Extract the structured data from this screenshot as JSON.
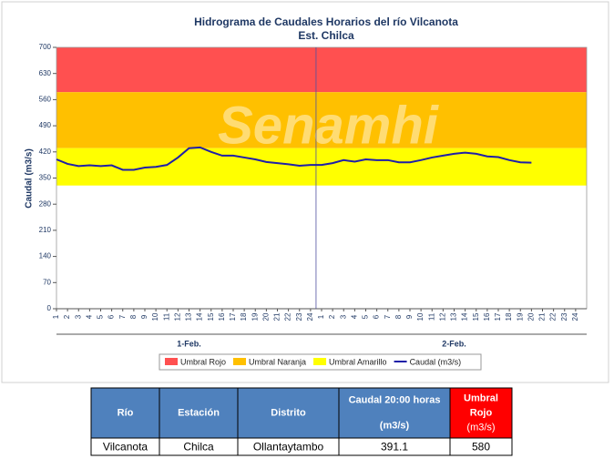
{
  "chart_data": {
    "type": "line",
    "title": "Hidrograma de Caudales Horarios del río Vilcanota",
    "subtitle": "Est. Chilca",
    "y_label": "Caudal  (m3/s)",
    "watermark": "Senamhi",
    "groups": [
      "1-Feb.",
      "2-Feb."
    ],
    "categories": [
      "1",
      "2",
      "3",
      "4",
      "5",
      "6",
      "7",
      "8",
      "9",
      "10",
      "11",
      "12",
      "13",
      "14",
      "15",
      "16",
      "17",
      "18",
      "19",
      "20",
      "21",
      "22",
      "23",
      "24",
      "1",
      "2",
      "3",
      "4",
      "5",
      "6",
      "7",
      "8",
      "9",
      "10",
      "11",
      "12",
      "13",
      "14",
      "15",
      "16",
      "17",
      "18",
      "19",
      "20",
      "21",
      "22",
      "23",
      "24"
    ],
    "ylim": [
      0,
      700
    ],
    "yticks": [
      0,
      70,
      140,
      210,
      280,
      350,
      420,
      490,
      560,
      630,
      700
    ],
    "thresholds": [
      {
        "name": "Umbral Rojo",
        "color": "#ff5050",
        "value": 580
      },
      {
        "name": "Umbral Naranja",
        "color": "#ffc000",
        "value": 430
      },
      {
        "name": "Umbral Amarillo",
        "color": "#ffff00",
        "value": 330
      }
    ],
    "series": [
      {
        "name": "Caudal (m3/s)",
        "color": "#1f1fa8",
        "values": [
          400,
          388,
          382,
          384,
          382,
          384,
          372,
          372,
          378,
          380,
          385,
          405,
          430,
          432,
          420,
          410,
          410,
          405,
          400,
          393,
          390,
          387,
          383,
          385,
          385,
          390,
          398,
          394,
          400,
          398,
          398,
          392,
          392,
          398,
          405,
          410,
          415,
          418,
          415,
          408,
          406,
          398,
          392,
          391.1,
          null,
          null,
          null,
          null
        ]
      }
    ]
  },
  "table": {
    "header": [
      [
        "Río"
      ],
      [
        "Estación"
      ],
      [
        "Distrito"
      ],
      [
        "Caudal 20:00 horas",
        "(m3/s)"
      ],
      [
        "Umbral",
        "Rojo",
        "(m3/s)"
      ]
    ],
    "rows": [
      [
        "Vilcanota",
        "Chilca",
        "Ollantaytambo",
        "391.1",
        "580"
      ]
    ]
  }
}
